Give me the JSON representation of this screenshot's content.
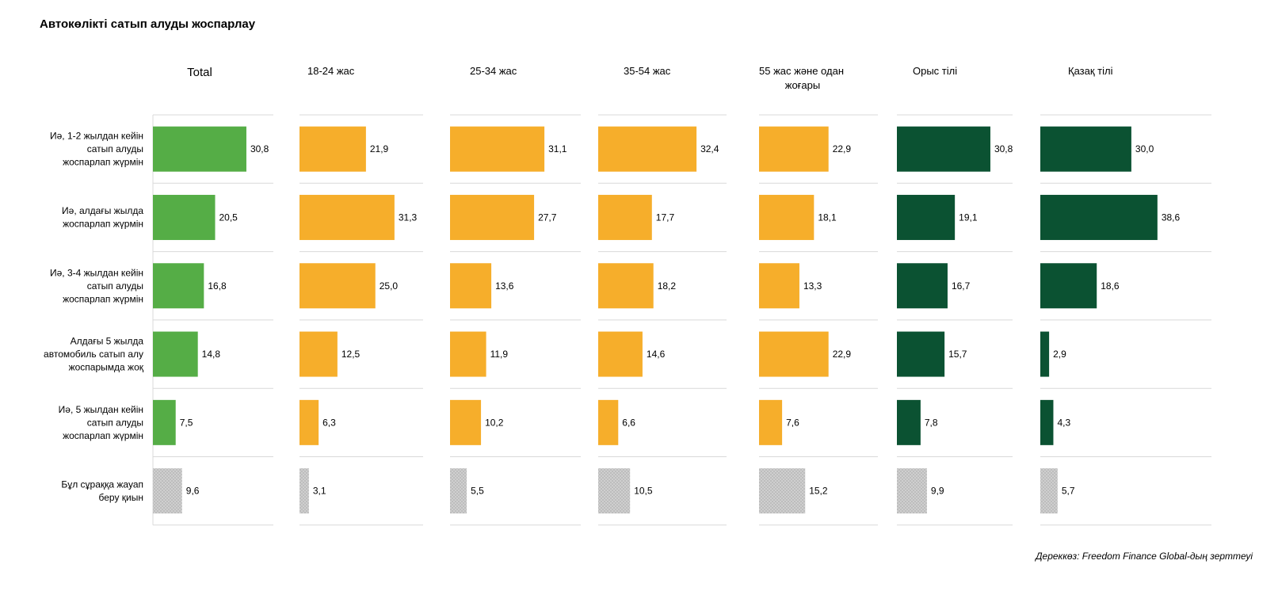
{
  "title": "Автокөлікті сатып алуды жоспарлау",
  "source": "Дереккөз: Freedom Finance Global-дың зерттеуі",
  "colors": {
    "total": "#55ad46",
    "age": "#f6ae2b",
    "language": "#0b5232",
    "hard_to_answer": "#bdbdbd",
    "gridline": "#d9d9d9"
  },
  "chart_data": {
    "type": "bar",
    "orientation": "horizontal",
    "categories": [
      "Иә, 1-2 жылдан кейін сатып алуды жоспарлап жүрмін",
      "Иә, алдағы жылда жоспарлап жүрмін",
      "Иә, 3-4 жылдан кейін сатып алуды жоспарлап жүрмін",
      "Алдағы 5 жылда автомобиль сатып алу жоспарымда жоқ",
      "Иә, 5 жылдан кейін сатып алуды жоспарлап жүрмін",
      "Бұл сұраққа жауап беру қиын"
    ],
    "category_lines": [
      [
        "Иә, 1-2 жылдан кейін",
        "сатып алуды",
        "жоспарлап жүрмін"
      ],
      [
        "Иә, алдағы жылда",
        "жоспарлап жүрмін"
      ],
      [
        "Иә, 3-4 жылдан кейін",
        "сатып алуды",
        "жоспарлап жүрмін"
      ],
      [
        "Алдағы 5 жылда",
        "автомобиль сатып алу",
        "жоспарымда жоқ"
      ],
      [
        "Иә, 5 жылдан кейін",
        "сатып алуды",
        "жоспарлап жүрмін"
      ],
      [
        "Бұл сұраққа жауап",
        "беру қиын"
      ]
    ],
    "series": [
      {
        "name": "Total",
        "name_lines": [
          "Total"
        ],
        "group": "total",
        "values": [
          30.8,
          20.5,
          16.8,
          14.8,
          7.5,
          9.6
        ],
        "labels": [
          "30,8",
          "20,5",
          "16,8",
          "14,8",
          "7,5",
          "9,6"
        ]
      },
      {
        "name": "18-24 жас",
        "name_lines": [
          "18-24 жас"
        ],
        "group": "age",
        "values": [
          21.9,
          31.3,
          25.0,
          12.5,
          6.3,
          3.1
        ],
        "labels": [
          "21,9",
          "31,3",
          "25,0",
          "12,5",
          "6,3",
          "3,1"
        ]
      },
      {
        "name": "25-34 жас",
        "name_lines": [
          "25-34 жас"
        ],
        "group": "age",
        "values": [
          31.1,
          27.7,
          13.6,
          11.9,
          10.2,
          5.5
        ],
        "labels": [
          "31,1",
          "27,7",
          "13,6",
          "11,9",
          "10,2",
          "5,5"
        ]
      },
      {
        "name": "35-54 жас",
        "name_lines": [
          "35-54 жас"
        ],
        "group": "age",
        "values": [
          32.4,
          17.7,
          18.2,
          14.6,
          6.6,
          10.5
        ],
        "labels": [
          "32,4",
          "17,7",
          "18,2",
          "14,6",
          "6,6",
          "10,5"
        ]
      },
      {
        "name": "55 жас және одан жоғары",
        "name_lines": [
          "55 жас және одан",
          "жоғары"
        ],
        "group": "age",
        "values": [
          22.9,
          18.1,
          13.3,
          22.9,
          7.6,
          15.2
        ],
        "labels": [
          "22,9",
          "18,1",
          "13,3",
          "22,9",
          "7,6",
          "15,2"
        ]
      },
      {
        "name": "Орыс тілі",
        "name_lines": [
          "Орыс тілі"
        ],
        "group": "language",
        "values": [
          30.8,
          19.1,
          16.7,
          15.7,
          7.8,
          9.9
        ],
        "labels": [
          "30,8",
          "19,1",
          "16,7",
          "15,7",
          "7,8",
          "9,9"
        ]
      },
      {
        "name": "Қазақ тілі",
        "name_lines": [
          "Қазақ тілі"
        ],
        "group": "language",
        "values": [
          30.0,
          38.6,
          18.6,
          2.9,
          4.3,
          5.7
        ],
        "labels": [
          "30,0",
          "38,6",
          "18,6",
          "2,9",
          "4,3",
          "5,7"
        ]
      }
    ],
    "last_category_style": "hard_to_answer",
    "xlim": [
      0,
      40
    ],
    "grid": false,
    "legend": "none"
  }
}
